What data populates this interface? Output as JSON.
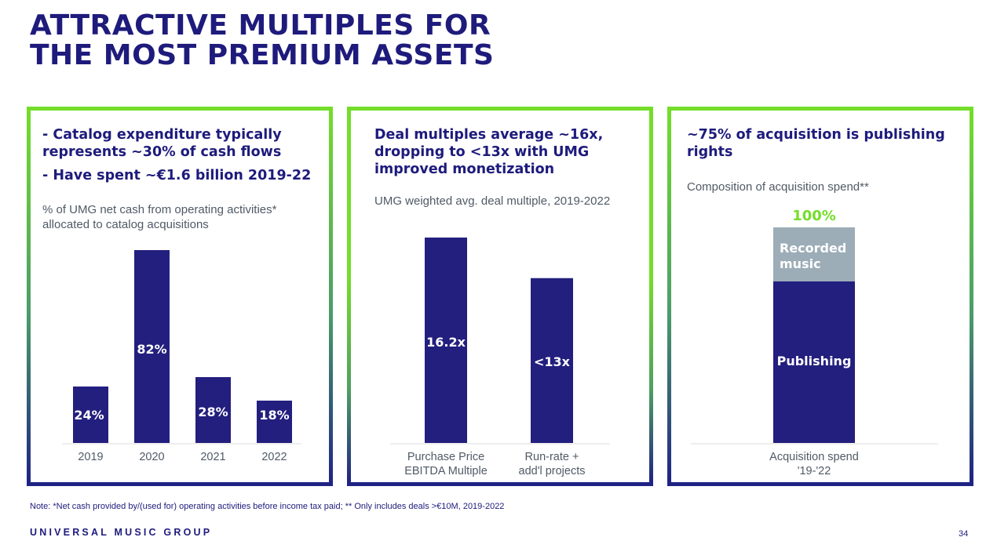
{
  "title_lines": [
    "ATTRACTIVE MULTIPLES FOR",
    "THE MOST PREMIUM ASSETS"
  ],
  "panels": [
    {
      "heading_lines": [
        "- Catalog expenditure typically",
        "represents ~30% of cash flows"
      ],
      "heading2": "- Have spent ~€1.6 billion 2019-22",
      "subtitle_lines": [
        "% of UMG net cash from operating activities*",
        "allocated to catalog acquisitions"
      ]
    },
    {
      "heading_lines": [
        "Deal multiples average ~16x,",
        "dropping to <13x with UMG",
        "improved monetization"
      ],
      "subtitle_lines": [
        "UMG weighted avg. deal multiple, 2019-2022"
      ]
    },
    {
      "heading_lines": [
        "~75% of acquisition is publishing",
        "rights"
      ],
      "subtitle_lines": [
        "Composition of acquisition spend**"
      ]
    }
  ],
  "colors": {
    "navy": "#231f7e",
    "gray": "#9cadb8",
    "green": "#74dd2a",
    "title": "#1e1b7c"
  },
  "chart_data": [
    {
      "type": "bar",
      "categories": [
        "2019",
        "2020",
        "2021",
        "2022"
      ],
      "values": [
        24,
        82,
        28,
        18
      ],
      "labels": [
        "24%",
        "82%",
        "28%",
        "18%"
      ],
      "ylim": [
        0,
        82
      ]
    },
    {
      "type": "bar",
      "categories": [
        [
          "Purchase Price",
          "EBITDA Multiple"
        ],
        [
          "Run-rate +",
          "add'l projects"
        ]
      ],
      "values": [
        16.2,
        13
      ],
      "labels": [
        "16.2x",
        "<13x"
      ],
      "ylim": [
        0,
        16.2
      ]
    },
    {
      "type": "bar",
      "stacked": true,
      "categories": [
        [
          "Acquisition spend",
          "'19-'22"
        ]
      ],
      "total_label": "100%",
      "series": [
        {
          "name": "Publishing",
          "values": [
            75
          ]
        },
        {
          "name": "Recorded music",
          "values": [
            25
          ]
        }
      ],
      "series_labels": [
        [
          "Publishing"
        ],
        [
          "Recorded",
          "music"
        ]
      ],
      "ylim": [
        0,
        100
      ]
    }
  ],
  "footnote": "Note: *Net cash provided by/(used for) operating activities before income tax paid; ** Only includes deals >€10M, 2019-2022",
  "brand": "UNIVERSAL MUSIC GROUP",
  "page_number": "34"
}
